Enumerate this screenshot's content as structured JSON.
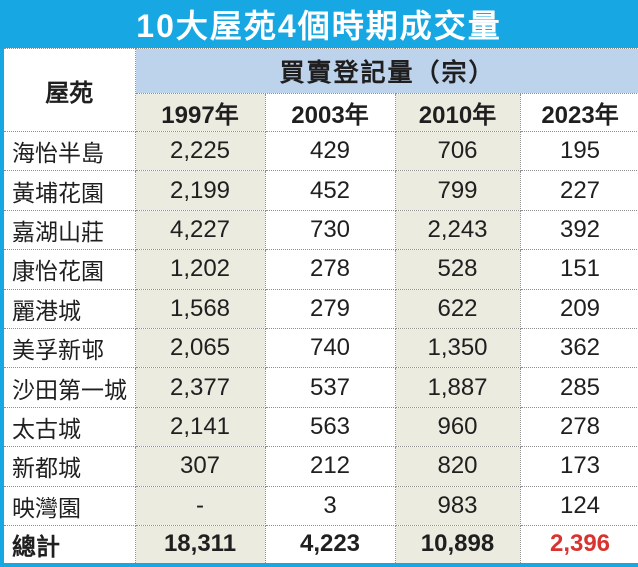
{
  "title": "10大屋苑4個時期成交量",
  "table": {
    "corner_header": "屋苑",
    "group_header": "買賣登記量（宗）",
    "year_headers": [
      "1997年",
      "2003年",
      "2010年",
      "2023年"
    ],
    "rows": [
      {
        "estate": "海怡半島",
        "values": [
          "2,225",
          "429",
          "706",
          "195"
        ]
      },
      {
        "estate": "黃埔花園",
        "values": [
          "2,199",
          "452",
          "799",
          "227"
        ]
      },
      {
        "estate": "嘉湖山莊",
        "values": [
          "4,227",
          "730",
          "2,243",
          "392"
        ]
      },
      {
        "estate": "康怡花園",
        "values": [
          "1,202",
          "278",
          "528",
          "151"
        ]
      },
      {
        "estate": "麗港城",
        "values": [
          "1,568",
          "279",
          "622",
          "209"
        ]
      },
      {
        "estate": "美孚新邨",
        "values": [
          "2,065",
          "740",
          "1,350",
          "362"
        ]
      },
      {
        "estate": "沙田第一城",
        "values": [
          "2,377",
          "537",
          "1,887",
          "285"
        ]
      },
      {
        "estate": "太古城",
        "values": [
          "2,141",
          "563",
          "960",
          "278"
        ]
      },
      {
        "estate": "新都城",
        "values": [
          "307",
          "212",
          "820",
          "173"
        ]
      },
      {
        "estate": "映灣園",
        "values": [
          "-",
          "3",
          "983",
          "124"
        ]
      }
    ],
    "total_row": {
      "label": "總計",
      "values": [
        "18,311",
        "4,223",
        "10,898",
        "2,396"
      ],
      "highlight_last_value": true
    }
  },
  "colors": {
    "title_bar": "#17A7E2",
    "group_header_bg": "#BDD2EB",
    "shaded_column_bg": "#EBEBE0",
    "highlight_value": "#D8332F",
    "text": "#1F1F1F",
    "cell_border": "#8F8F8F"
  },
  "chart_data": {
    "type": "table",
    "title": "10大屋苑4個時期成交量",
    "group_header": "買賣登記量（宗）",
    "columns": [
      "屋苑",
      "1997年",
      "2003年",
      "2010年",
      "2023年"
    ],
    "rows": [
      [
        "海怡半島",
        2225,
        429,
        706,
        195
      ],
      [
        "黃埔花園",
        2199,
        452,
        799,
        227
      ],
      [
        "嘉湖山莊",
        4227,
        730,
        2243,
        392
      ],
      [
        "康怡花園",
        1202,
        278,
        528,
        151
      ],
      [
        "麗港城",
        1568,
        279,
        622,
        209
      ],
      [
        "美孚新邨",
        2065,
        740,
        1350,
        362
      ],
      [
        "沙田第一城",
        2377,
        537,
        1887,
        285
      ],
      [
        "太古城",
        2141,
        563,
        960,
        278
      ],
      [
        "新都城",
        307,
        212,
        820,
        173
      ],
      [
        "映灣園",
        null,
        3,
        983,
        124
      ]
    ],
    "totals": [
      "總計",
      18311,
      4223,
      10898,
      2396
    ],
    "notes": "shaded columns: 1997年 and 2010年; total of 2023年 shown in red"
  }
}
